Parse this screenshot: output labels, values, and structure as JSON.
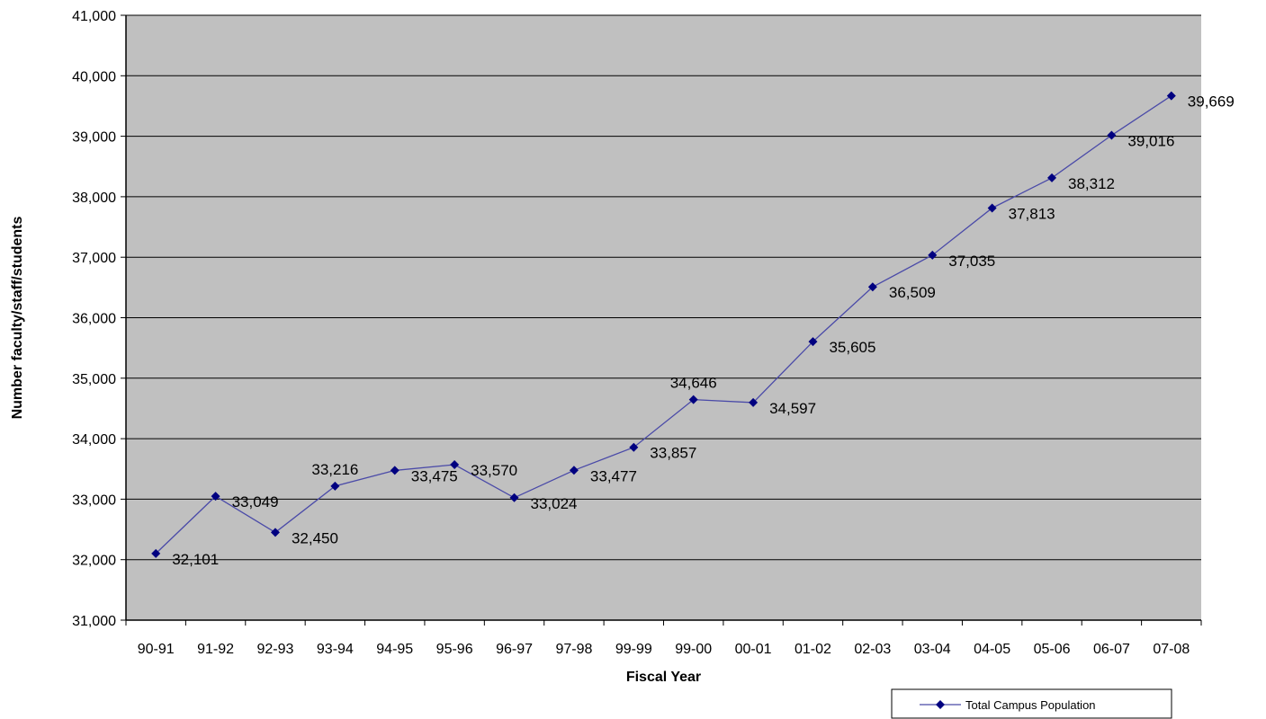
{
  "chart_data": {
    "type": "line",
    "title": "",
    "xlabel": "Fiscal Year",
    "ylabel": "Number faculty/staff/students",
    "categories": [
      "90-91",
      "91-92",
      "92-93",
      "93-94",
      "94-95",
      "95-96",
      "96-97",
      "97-98",
      "99-99",
      "99-00",
      "00-01",
      "01-02",
      "02-03",
      "03-04",
      "04-05",
      "05-06",
      "06-07",
      "07-08"
    ],
    "series": [
      {
        "name": "Total Campus Population",
        "values": [
          32101,
          33049,
          32450,
          33216,
          33475,
          33570,
          33024,
          33477,
          33857,
          34646,
          34597,
          35605,
          36509,
          37035,
          37813,
          38312,
          39016,
          39669
        ],
        "data_labels": [
          "32,101",
          "33,049",
          "32,450",
          "33,216",
          "33,475",
          "33,570",
          "33,024",
          "33,477",
          "33,857",
          "34,646",
          "34,597",
          "35,605",
          "36,509",
          "37,035",
          "37,813",
          "38,312",
          "39,016",
          "39,669"
        ]
      }
    ],
    "ylim": [
      31000,
      41000
    ],
    "yticks": [
      31000,
      32000,
      33000,
      34000,
      35000,
      36000,
      37000,
      38000,
      39000,
      40000,
      41000
    ],
    "ytick_labels": [
      "31,000",
      "32,000",
      "33,000",
      "34,000",
      "35,000",
      "36,000",
      "37,000",
      "38,000",
      "39,000",
      "40,000",
      "41,000"
    ],
    "grid": true,
    "legend": "bottom-right",
    "colors": {
      "plot_background": "#c0c0c0",
      "series": "#000080",
      "series_line": "#4a4aa8",
      "gridline": "#000000"
    }
  }
}
